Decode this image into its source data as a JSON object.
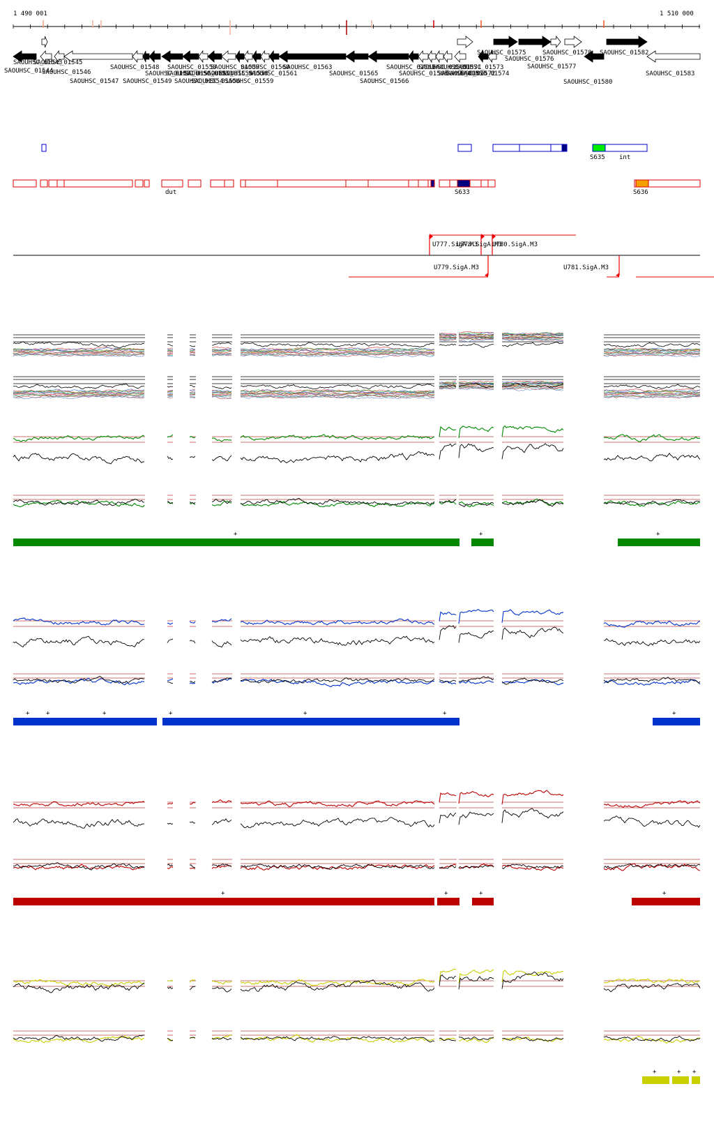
{
  "axis": {
    "start_label": "1 490 001",
    "end_label": "1 510 000",
    "start_bp": 1490001,
    "end_bp": 1510000
  },
  "genes": [
    {
      "label": "SAOUHSC_01543",
      "strand": "-",
      "filled": true
    },
    {
      "label": "SAOUHSC_01544",
      "strand": "+",
      "filled": false
    },
    {
      "label": "SAOUHSC_01545",
      "strand": "-",
      "filled": false
    },
    {
      "label": "SAOUHSC_01546",
      "strand": "-",
      "filled": false
    },
    {
      "label": "SAOUHSC_01547",
      "strand": "-",
      "filled": false
    },
    {
      "label": "SAOUHSC_01548",
      "strand": "-",
      "filled": false
    },
    {
      "label": "SAOUHSC_01549",
      "strand": "-",
      "filled": true
    },
    {
      "label": "SAOUHSC_01550",
      "strand": "-",
      "filled": true
    },
    {
      "label": "SAOUHSC_01551",
      "strand": "-",
      "filled": true
    },
    {
      "label": "SAOUHSC_01552",
      "strand": "-",
      "filled": true
    },
    {
      "label": "SAOUHSC_01553",
      "strand": "-",
      "filled": false
    },
    {
      "label": "SAOUHSC_01554",
      "strand": "-",
      "filled": true
    },
    {
      "label": "SAOUHSC_01555",
      "strand": "-",
      "filled": false
    },
    {
      "label": "SAOUHSC_01556",
      "strand": "-",
      "filled": true
    },
    {
      "label": "SAOUHSC_01557",
      "strand": "-",
      "filled": false
    },
    {
      "label": "SAOUHSC_01558",
      "strand": "-",
      "filled": true
    },
    {
      "label": "SAOUHSC_01559",
      "strand": "-",
      "filled": false
    },
    {
      "label": "SAOUHSC_01560",
      "strand": "-",
      "filled": true
    },
    {
      "label": "SAOUHSC_01561",
      "strand": "-",
      "filled": true
    },
    {
      "label": "SAOUHSC_01563",
      "strand": "-",
      "filled": true
    },
    {
      "label": "SAOUHSC_01565",
      "strand": "-",
      "filled": true
    },
    {
      "label": "SAOUHSC_01566",
      "strand": "-",
      "filled": true
    },
    {
      "label": "SAOUHSC_01567",
      "strand": "-",
      "filled": false
    },
    {
      "label": "SAOUHSC_01568",
      "strand": "-",
      "filled": false
    },
    {
      "label": "SAOUHSC_01569",
      "strand": "-",
      "filled": false
    },
    {
      "label": "SAOUHSC_01570",
      "strand": "-",
      "filled": false
    },
    {
      "label": "SAOUHSC_01571",
      "strand": "+",
      "filled": false
    },
    {
      "label": "SAOUHSC_01572",
      "strand": "-",
      "filled": false
    },
    {
      "label": "SAOUHSC_01573",
      "strand": "-",
      "filled": true
    },
    {
      "label": "SAOUHSC_01574",
      "strand": "-",
      "filled": false
    },
    {
      "label": "SAOUHSC_01575",
      "strand": "+",
      "filled": true
    },
    {
      "label": "SAOUHSC_01576",
      "strand": "+",
      "filled": true
    },
    {
      "label": "SAOUHSC_01577",
      "strand": "+",
      "filled": false
    },
    {
      "label": "SAOUHSC_01578",
      "strand": "+",
      "filled": false
    },
    {
      "label": "SAOUHSC_01580",
      "strand": "-",
      "filled": true
    },
    {
      "label": "SAOUHSC_01582",
      "strand": "+",
      "filled": true
    },
    {
      "label": "SAOUHSC_01583",
      "strand": "-",
      "filled": false
    }
  ],
  "features": {
    "plus_labels": [
      "S635",
      "int"
    ],
    "minus_labels": [
      "dut",
      "S633",
      "S636"
    ]
  },
  "promoters": [
    {
      "label": "U777.SigA.M3",
      "strand": "+"
    },
    {
      "label": "U778.SigA.M3",
      "strand": "+"
    },
    {
      "label": "U780.SigA.M3",
      "strand": "+"
    },
    {
      "label": "U779.SigA.M3",
      "strand": "-"
    },
    {
      "label": "U781.SigA.M3",
      "strand": "-"
    }
  ],
  "segment_marks": {
    "symbol": "+"
  },
  "colors": {
    "gene": "#000000",
    "plus_feature": "#0000cc",
    "minus_feature": "#dd0000",
    "highlight_navy": "#000080",
    "highlight_green": "#00ee00",
    "highlight_orange": "#f5a000",
    "promoter": "#ee0000",
    "panel_green": "#008800",
    "panel_blue": "#0033cc",
    "panel_red": "#bb0000",
    "panel_yellow": "#c8d000",
    "threshold": "#bb4444",
    "ref_trace": "#000000"
  }
}
